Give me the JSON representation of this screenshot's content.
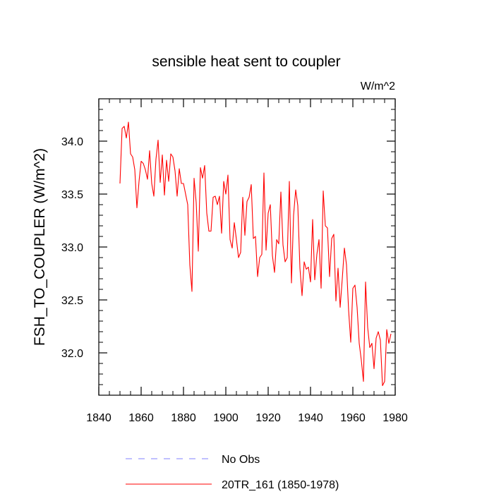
{
  "chart_data": {
    "type": "line",
    "title": "sensible heat sent to coupler",
    "units_label": "W/m^2",
    "xlabel": "",
    "ylabel": "FSH_TO_COUPLER  (W/m^2)",
    "xlim": [
      1840,
      1980
    ],
    "ylim": [
      31.6,
      34.4
    ],
    "xticks": [
      "1840",
      "1860",
      "1880",
      "1900",
      "1920",
      "1940",
      "1960",
      "1980"
    ],
    "yticks": [
      "32.0",
      "32.5",
      "33.0",
      "33.5",
      "34.0"
    ],
    "grid": false,
    "legend_position": "bottom",
    "legend": [
      {
        "label": "No Obs",
        "color": "#8080ff",
        "style": "dashed"
      },
      {
        "label": "20TR_161 (1850-1978)",
        "color": "#ff0000",
        "style": "solid"
      }
    ],
    "series": [
      {
        "name": "20TR_161 (1850-1978)",
        "color": "#ff0000",
        "x": [
          1850,
          1851,
          1852,
          1853,
          1854,
          1855,
          1856,
          1857,
          1858,
          1859,
          1860,
          1861,
          1862,
          1863,
          1864,
          1865,
          1866,
          1867,
          1868,
          1869,
          1870,
          1871,
          1872,
          1873,
          1874,
          1875,
          1876,
          1877,
          1878,
          1879,
          1880,
          1881,
          1882,
          1883,
          1884,
          1885,
          1886,
          1887,
          1888,
          1889,
          1890,
          1891,
          1892,
          1893,
          1894,
          1895,
          1896,
          1897,
          1898,
          1899,
          1900,
          1901,
          1902,
          1903,
          1904,
          1905,
          1906,
          1907,
          1908,
          1909,
          1910,
          1911,
          1912,
          1913,
          1914,
          1915,
          1916,
          1917,
          1918,
          1919,
          1920,
          1921,
          1922,
          1923,
          1924,
          1925,
          1926,
          1927,
          1928,
          1929,
          1930,
          1931,
          1932,
          1933,
          1934,
          1935,
          1936,
          1937,
          1938,
          1939,
          1940,
          1941,
          1942,
          1943,
          1944,
          1945,
          1946,
          1947,
          1948,
          1949,
          1950,
          1951,
          1952,
          1953,
          1954,
          1955,
          1956,
          1957,
          1958,
          1959,
          1960,
          1961,
          1962,
          1963,
          1964,
          1965,
          1966,
          1967,
          1968,
          1969,
          1970,
          1971,
          1972,
          1973,
          1974,
          1975,
          1976,
          1977,
          1978
        ],
        "values": [
          33.6,
          34.12,
          34.14,
          34.03,
          34.18,
          33.88,
          33.85,
          33.73,
          33.37,
          33.62,
          33.81,
          33.79,
          33.73,
          33.64,
          33.91,
          33.6,
          33.48,
          33.83,
          34.01,
          33.61,
          33.87,
          33.49,
          33.82,
          33.62,
          33.88,
          33.85,
          33.72,
          33.48,
          33.74,
          33.6,
          33.6,
          33.5,
          33.4,
          32.83,
          32.58,
          33.65,
          33.42,
          32.96,
          33.75,
          33.65,
          33.77,
          33.32,
          33.15,
          33.15,
          33.47,
          33.48,
          33.4,
          33.48,
          33.13,
          33.62,
          33.5,
          33.68,
          33.07,
          32.99,
          33.23,
          33.07,
          32.9,
          32.95,
          33.47,
          33.11,
          33.43,
          33.47,
          33.59,
          33.08,
          33.1,
          32.72,
          32.9,
          32.93,
          33.7,
          32.97,
          33.32,
          33.4,
          32.92,
          32.76,
          33.07,
          33.03,
          33.52,
          33.02,
          32.86,
          32.9,
          33.62,
          32.66,
          33.3,
          33.54,
          33.39,
          32.8,
          32.54,
          32.86,
          32.79,
          32.81,
          32.67,
          33.26,
          32.69,
          32.93,
          33.07,
          32.61,
          33.53,
          33.2,
          33.18,
          32.72,
          33.08,
          33.12,
          32.49,
          32.8,
          32.43,
          32.7,
          32.99,
          32.83,
          32.4,
          32.1,
          32.61,
          32.64,
          32.43,
          32.09,
          31.93,
          31.73,
          32.67,
          32.24,
          32.05,
          32.09,
          31.85,
          32.14,
          32.2,
          32.12,
          31.69,
          31.73,
          32.22,
          32.09,
          32.18
        ]
      },
      {
        "name": "No Obs",
        "color": "#8080ff",
        "x": [],
        "values": []
      }
    ]
  }
}
